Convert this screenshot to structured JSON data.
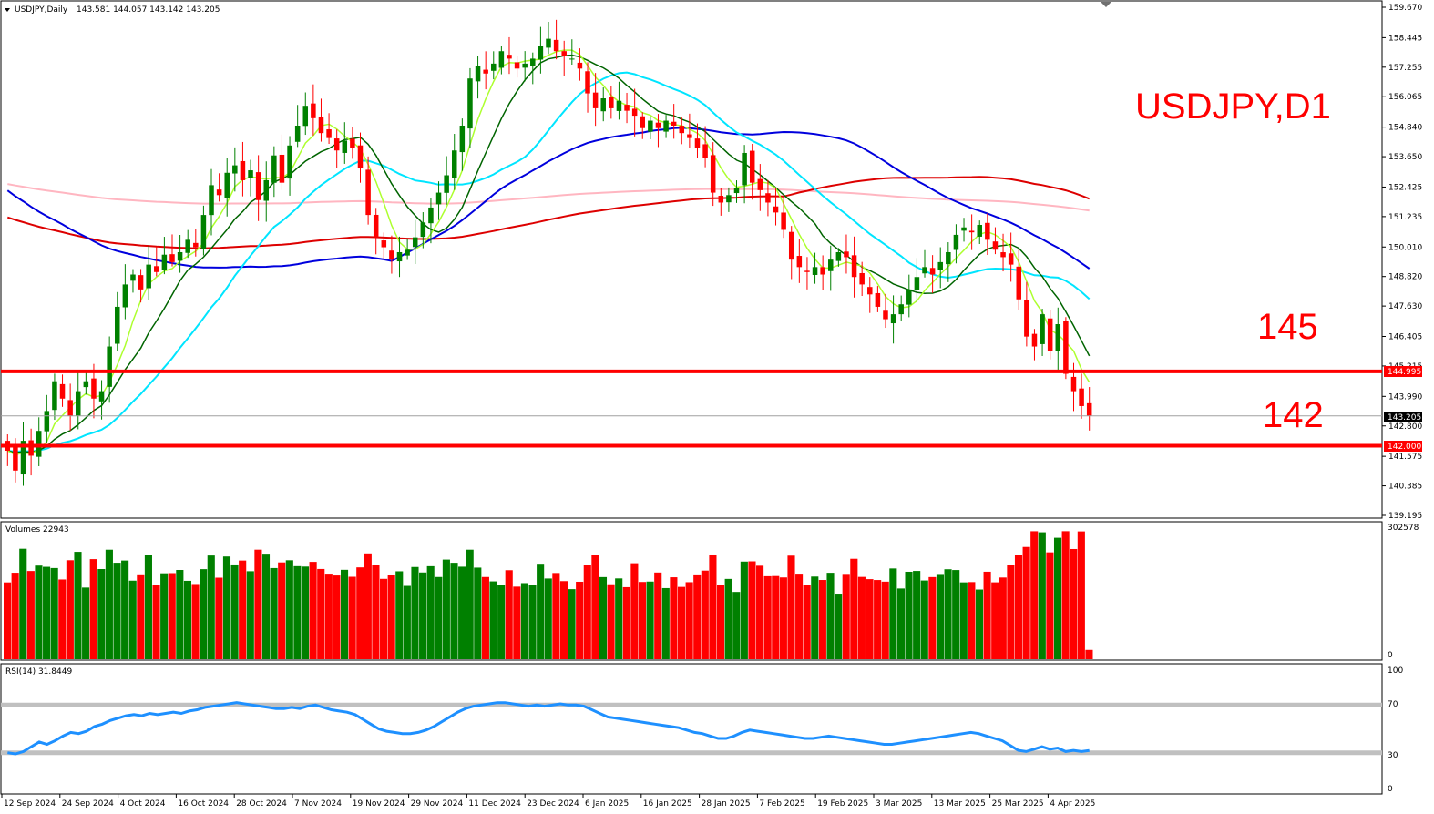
{
  "header": {
    "symbol": "USDJPY,Daily",
    "ohlc": "143.581 144.057 143.142 143.205"
  },
  "annotations": {
    "title": "USDJPY,D1",
    "level_high": "145",
    "level_low": "142"
  },
  "price_tags": {
    "resistance": "144.995",
    "support": "142.000",
    "current": "143.205"
  },
  "volumes_panel": {
    "label": "Volumes 22943",
    "axis_max": "302578",
    "axis_min": "0"
  },
  "rsi_panel": {
    "label": "RSI(14) 31.8449",
    "axis_100": "100",
    "axis_70": "70",
    "axis_30": "30",
    "axis_0": "0"
  },
  "colors": {
    "bull": "#008000",
    "bear": "#ff0000",
    "line_red": "#ff0000",
    "ma_blue": "#0000dd",
    "ma_pink": "#ffb6c1",
    "ma_red": "#dd0000",
    "ma_cyan": "#00e5ff",
    "ma_lime": "#adff2f",
    "ma_dkgreen": "#006400",
    "rsi": "#1e90ff",
    "rsi_level": "#c0c0c0"
  },
  "chart_data": {
    "type": "candlestick",
    "ylim": [
      139.195,
      159.67
    ],
    "y_ticks": [
      "159.670",
      "158.445",
      "157.255",
      "156.065",
      "154.840",
      "153.650",
      "152.425",
      "151.235",
      "150.010",
      "148.820",
      "147.630",
      "146.405",
      "145.215",
      "143.990",
      "142.800",
      "141.575",
      "140.385",
      "139.195"
    ],
    "x_labels": [
      "12 Sep 2024",
      "24 Sep 2024",
      "4 Oct 2024",
      "16 Oct 2024",
      "28 Oct 2024",
      "7 Nov 2024",
      "19 Nov 2024",
      "29 Nov 2024",
      "11 Dec 2024",
      "23 Dec 2024",
      "6 Jan 2025",
      "16 Jan 2025",
      "28 Jan 2025",
      "7 Feb 2025",
      "19 Feb 2025",
      "3 Mar 2025",
      "13 Mar 2025",
      "25 Mar 2025",
      "4 Apr 2025"
    ],
    "horizontal_levels": [
      144.995,
      142.0
    ],
    "current_price": 143.205,
    "close_path": [
      141.8,
      141.0,
      142.2,
      141.6,
      142.6,
      143.4,
      144.6,
      143.9,
      143.2,
      144.2,
      144.6,
      143.9,
      144.2,
      146.0,
      147.6,
      148.5,
      148.9,
      148.3,
      149.3,
      149.0,
      149.7,
      149.4,
      149.8,
      150.3,
      150.0,
      151.3,
      152.5,
      152.1,
      153.0,
      153.3,
      152.7,
      153.1,
      151.9,
      152.7,
      153.7,
      152.6,
      154.1,
      154.9,
      155.7,
      155.2,
      154.6,
      154.4,
      153.9,
      154.3,
      154.0,
      153.2,
      151.3,
      150.4,
      150.0,
      149.5,
      149.8,
      149.9,
      150.4,
      151.0,
      151.6,
      152.2,
      152.9,
      153.9,
      154.9,
      156.8,
      157.3,
      157.0,
      157.4,
      157.9,
      157.6,
      157.2,
      157.4,
      157.6,
      158.1,
      158.4,
      157.9,
      157.7,
      157.6,
      157.2,
      156.2,
      155.6,
      156.0,
      155.6,
      155.9,
      155.5,
      155.3,
      154.8,
      155.1,
      154.8,
      155.1,
      154.9,
      154.6,
      154.4,
      154.0,
      153.6,
      152.2,
      151.8,
      152.1,
      152.4,
      153.8,
      152.6,
      152.3,
      151.8,
      151.4,
      150.7,
      149.5,
      149.2,
      149.0,
      149.2,
      148.9,
      149.5,
      149.8,
      149.6,
      148.8,
      148.5,
      148.1,
      147.6,
      147.1,
      147.3,
      147.7,
      148.3,
      148.8,
      149.2,
      148.9,
      149.4,
      149.8,
      150.5,
      150.8,
      150.6,
      150.9,
      150.3,
      149.9,
      149.6,
      149.3,
      147.9,
      146.4,
      146.0,
      147.3,
      145.8,
      146.9,
      144.9,
      144.2,
      143.6,
      143.205
    ],
    "volumes_panel_range": [
      0,
      302578
    ],
    "rsi": {
      "ylim": [
        0,
        100
      ],
      "levels": [
        70,
        30
      ],
      "last": 31.8449,
      "path": [
        30,
        29,
        31,
        35,
        39,
        37,
        40,
        44,
        47,
        46,
        48,
        52,
        54,
        57,
        59,
        61,
        62,
        61,
        63,
        62,
        63,
        64,
        63,
        65,
        66,
        68,
        69,
        70,
        71,
        72,
        71,
        70,
        69,
        68,
        67,
        67,
        68,
        67,
        69,
        70,
        68,
        66,
        65,
        64,
        62,
        58,
        54,
        50,
        48,
        47,
        46,
        46,
        47,
        49,
        52,
        56,
        60,
        64,
        67,
        69,
        70,
        71,
        72,
        72,
        71,
        70,
        69,
        70,
        69,
        70,
        71,
        70,
        70,
        69,
        66,
        63,
        60,
        59,
        58,
        57,
        56,
        55,
        54,
        53,
        52,
        51,
        49,
        47,
        46,
        44,
        42,
        42,
        44,
        47,
        49,
        48,
        47,
        46,
        45,
        44,
        43,
        42,
        42,
        43,
        44,
        43,
        42,
        41,
        40,
        39,
        38,
        37,
        37,
        38,
        39,
        40,
        41,
        42,
        43,
        44,
        45,
        46,
        47,
        46,
        44,
        42,
        40,
        36,
        32,
        31,
        33,
        35,
        33,
        34,
        31,
        32,
        31,
        31.8449
      ]
    }
  }
}
